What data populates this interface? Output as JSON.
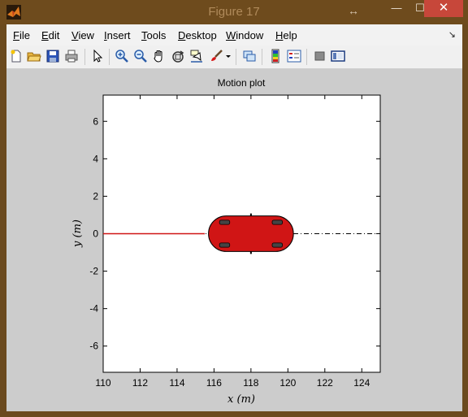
{
  "window": {
    "title": "Figure 17",
    "resize_glyph": "↔",
    "minimize_glyph": "—",
    "maximize_glyph": "☐",
    "close_glyph": "✕"
  },
  "menubar": {
    "items": [
      {
        "key": "F",
        "rest": "ile"
      },
      {
        "key": "E",
        "rest": "dit"
      },
      {
        "key": "V",
        "rest": "iew"
      },
      {
        "key": "I",
        "rest": "nsert"
      },
      {
        "key": "T",
        "rest": "ools"
      },
      {
        "key": "D",
        "rest": "esktop"
      },
      {
        "key": "W",
        "rest": "indow"
      },
      {
        "key": "H",
        "rest": "elp"
      }
    ],
    "dock_glyph": "↘"
  },
  "toolbar": {
    "icons": [
      "new-figure-icon",
      "open-file-icon",
      "save-icon",
      "print-icon",
      "edit-plot-arrow-icon",
      "zoom-in-icon",
      "zoom-out-icon",
      "pan-hand-icon",
      "rotate-3d-icon",
      "data-cursor-icon",
      "brush-icon",
      "brush-dropdown-icon",
      "link-plot-icon",
      "colorbar-icon",
      "legend-icon",
      "hide-plot-tools-icon",
      "show-plot-tools-icon"
    ]
  },
  "chart_data": {
    "type": "scatter",
    "title": "Motion plot",
    "xlabel": "x (m)",
    "ylabel": "y (m)",
    "xlim": [
      110,
      125
    ],
    "ylim": [
      -7.4,
      7.4
    ],
    "xticks": [
      110,
      112,
      114,
      116,
      118,
      120,
      122,
      124
    ],
    "yticks": [
      -6,
      -4,
      -2,
      0,
      2,
      4,
      6
    ],
    "grid": false,
    "reference_path": {
      "x": [
        110,
        125
      ],
      "y": [
        0,
        0
      ],
      "style": "dash-dot",
      "color": "#000000"
    },
    "traveled_path": {
      "x": [
        110,
        115.5
      ],
      "y": [
        0,
        0
      ],
      "color": "#d01515"
    },
    "vehicle": {
      "x": 118,
      "y": 0,
      "heading_deg": 0,
      "length": 4.6,
      "width": 1.9,
      "color": "#d01515"
    }
  }
}
